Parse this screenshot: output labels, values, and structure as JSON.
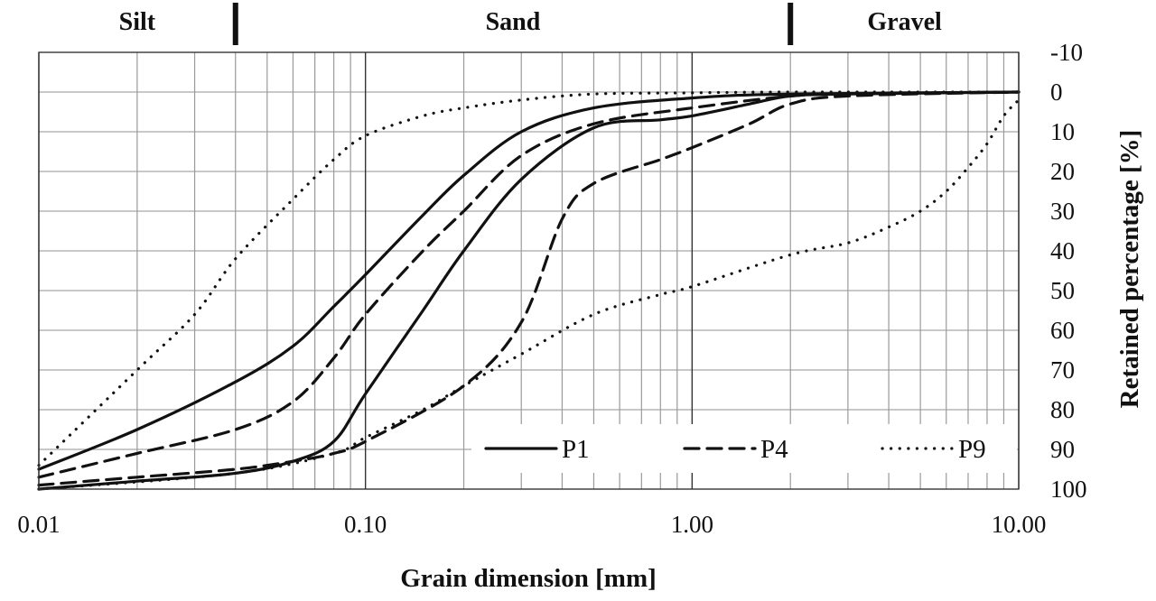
{
  "chart_data": {
    "type": "line",
    "xlabel": "Grain dimension [mm]",
    "ylabel": "Retained percentage [%]",
    "x_scale": "log",
    "xlim": [
      0.01,
      10
    ],
    "ylim": [
      -10,
      100
    ],
    "y_inverted": true,
    "y_axis_side": "right",
    "grid": true,
    "legend_position": "bottom-right",
    "x_ticks": [
      {
        "value": 0.01,
        "label": "0.01"
      },
      {
        "value": 0.1,
        "label": "0.10"
      },
      {
        "value": 1,
        "label": "1.00"
      },
      {
        "value": 10,
        "label": "10.00"
      }
    ],
    "y_ticks": [
      {
        "value": -10,
        "label": "-10"
      },
      {
        "value": 0,
        "label": "0"
      },
      {
        "value": 10,
        "label": "10"
      },
      {
        "value": 20,
        "label": "20"
      },
      {
        "value": 30,
        "label": "30"
      },
      {
        "value": 40,
        "label": "40"
      },
      {
        "value": 50,
        "label": "50"
      },
      {
        "value": 60,
        "label": "60"
      },
      {
        "value": 70,
        "label": "70"
      },
      {
        "value": 80,
        "label": "80"
      },
      {
        "value": 90,
        "label": "90"
      },
      {
        "value": 100,
        "label": "100"
      }
    ],
    "soil_zones": [
      {
        "label": "Silt",
        "from": 0.01,
        "to": 0.04
      },
      {
        "label": "Sand",
        "from": 0.04,
        "to": 2
      },
      {
        "label": "Gravel",
        "from": 2,
        "to": 10
      }
    ],
    "series": [
      {
        "name": "P1",
        "style": "solid",
        "curves": [
          [
            [
              0.01,
              95
            ],
            [
              0.02,
              85
            ],
            [
              0.04,
              73
            ],
            [
              0.06,
              64
            ],
            [
              0.08,
              54
            ],
            [
              0.1,
              46
            ],
            [
              0.15,
              31
            ],
            [
              0.2,
              21
            ],
            [
              0.3,
              10
            ],
            [
              0.5,
              4
            ],
            [
              1,
              1.5
            ],
            [
              2,
              0.5
            ],
            [
              10,
              0
            ]
          ],
          [
            [
              0.01,
              100
            ],
            [
              0.02,
              98
            ],
            [
              0.04,
              96
            ],
            [
              0.06,
              93
            ],
            [
              0.08,
              88
            ],
            [
              0.1,
              76
            ],
            [
              0.15,
              55
            ],
            [
              0.2,
              40
            ],
            [
              0.3,
              22
            ],
            [
              0.5,
              9
            ],
            [
              0.8,
              7
            ],
            [
              1,
              6
            ],
            [
              1.5,
              3
            ],
            [
              2,
              1
            ],
            [
              3,
              0.5
            ],
            [
              10,
              0
            ]
          ]
        ]
      },
      {
        "name": "P4",
        "style": "dashed",
        "curves": [
          [
            [
              0.01,
              97
            ],
            [
              0.02,
              91
            ],
            [
              0.04,
              85
            ],
            [
              0.06,
              78
            ],
            [
              0.08,
              67
            ],
            [
              0.1,
              56
            ],
            [
              0.15,
              40
            ],
            [
              0.2,
              30
            ],
            [
              0.3,
              16
            ],
            [
              0.5,
              8
            ],
            [
              1,
              4
            ],
            [
              2,
              1
            ],
            [
              3,
              0.5
            ],
            [
              10,
              0
            ]
          ],
          [
            [
              0.01,
              99
            ],
            [
              0.02,
              97
            ],
            [
              0.04,
              95
            ],
            [
              0.06,
              93
            ],
            [
              0.08,
              91
            ],
            [
              0.1,
              88
            ],
            [
              0.2,
              74
            ],
            [
              0.3,
              58
            ],
            [
              0.4,
              32
            ],
            [
              0.5,
              23
            ],
            [
              0.8,
              17
            ],
            [
              1,
              14
            ],
            [
              1.5,
              8
            ],
            [
              2,
              3
            ],
            [
              3,
              1
            ],
            [
              10,
              0
            ]
          ]
        ]
      },
      {
        "name": "P9",
        "style": "dotted",
        "curves": [
          [
            [
              0.01,
              94
            ],
            [
              0.02,
              70
            ],
            [
              0.03,
              56
            ],
            [
              0.04,
              42
            ],
            [
              0.06,
              27
            ],
            [
              0.08,
              17
            ],
            [
              0.1,
              11
            ],
            [
              0.15,
              6
            ],
            [
              0.2,
              4
            ],
            [
              0.3,
              2
            ],
            [
              0.5,
              0.5
            ],
            [
              1,
              0.2
            ],
            [
              2,
              0
            ],
            [
              10,
              0
            ]
          ],
          [
            [
              0.01,
              100
            ],
            [
              0.04,
              96
            ],
            [
              0.08,
              91
            ],
            [
              0.1,
              87
            ],
            [
              0.15,
              80
            ],
            [
              0.2,
              74
            ],
            [
              0.3,
              66
            ],
            [
              0.5,
              56
            ],
            [
              0.8,
              51
            ],
            [
              1,
              49
            ],
            [
              2,
              41
            ],
            [
              3,
              38
            ],
            [
              4,
              34
            ],
            [
              5,
              30
            ],
            [
              6,
              25
            ],
            [
              7,
              19
            ],
            [
              8,
              13
            ],
            [
              9,
              6
            ],
            [
              10,
              2
            ]
          ]
        ]
      }
    ]
  }
}
